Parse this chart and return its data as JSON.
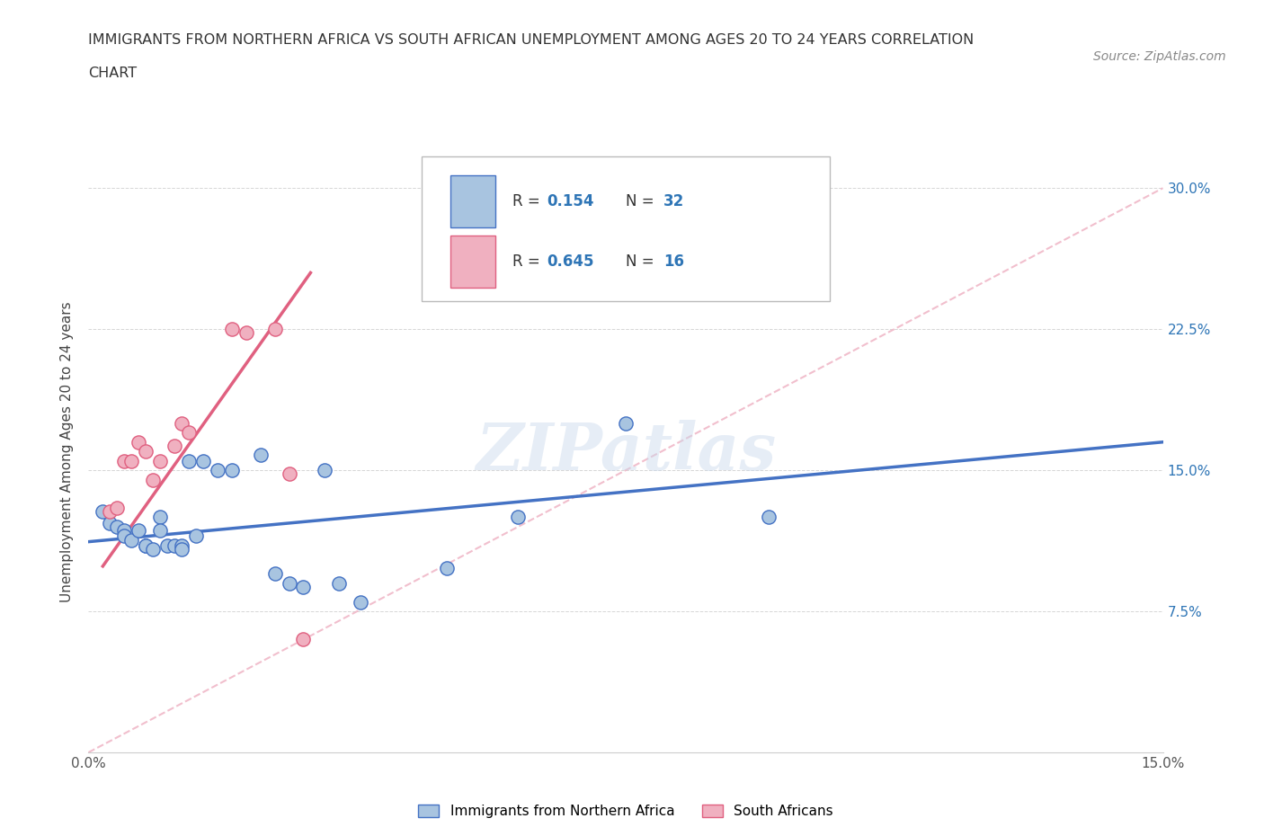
{
  "title_line1": "IMMIGRANTS FROM NORTHERN AFRICA VS SOUTH AFRICAN UNEMPLOYMENT AMONG AGES 20 TO 24 YEARS CORRELATION",
  "title_line2": "CHART",
  "source": "Source: ZipAtlas.com",
  "ylabel": "Unemployment Among Ages 20 to 24 years",
  "xlim": [
    0.0,
    0.15
  ],
  "ylim": [
    0.0,
    0.32
  ],
  "xticks": [
    0.0,
    0.03,
    0.06,
    0.09,
    0.12,
    0.15
  ],
  "yticks": [
    0.0,
    0.075,
    0.15,
    0.225,
    0.3
  ],
  "ytick_labels": [
    "",
    "7.5%",
    "15.0%",
    "22.5%",
    "30.0%"
  ],
  "xtick_labels": [
    "0.0%",
    "",
    "",
    "",
    "",
    "15.0%"
  ],
  "watermark": "ZIPatlas",
  "legend_r1": "0.154",
  "legend_n1": "32",
  "legend_r2": "0.645",
  "legend_n2": "16",
  "legend_label1": "Immigrants from Northern Africa",
  "legend_label2": "South Africans",
  "blue_color": "#a8c4e0",
  "pink_color": "#f0b0c0",
  "blue_line_color": "#4472c4",
  "pink_line_color": "#e06080",
  "diag_line_color": "#f0b8c8",
  "text_color": "#333333",
  "R_color": "#2e75b6",
  "grid_color": "#cccccc",
  "blue_points_x": [
    0.002,
    0.003,
    0.004,
    0.005,
    0.005,
    0.006,
    0.007,
    0.008,
    0.008,
    0.009,
    0.01,
    0.01,
    0.011,
    0.012,
    0.013,
    0.013,
    0.014,
    0.015,
    0.016,
    0.018,
    0.02,
    0.024,
    0.026,
    0.028,
    0.03,
    0.033,
    0.035,
    0.038,
    0.05,
    0.06,
    0.075,
    0.095
  ],
  "blue_points_y": [
    0.128,
    0.122,
    0.12,
    0.118,
    0.115,
    0.113,
    0.118,
    0.11,
    0.11,
    0.108,
    0.125,
    0.118,
    0.11,
    0.11,
    0.11,
    0.108,
    0.155,
    0.115,
    0.155,
    0.15,
    0.15,
    0.158,
    0.095,
    0.09,
    0.088,
    0.15,
    0.09,
    0.08,
    0.098,
    0.125,
    0.175,
    0.125
  ],
  "pink_points_x": [
    0.003,
    0.004,
    0.005,
    0.006,
    0.007,
    0.008,
    0.009,
    0.01,
    0.012,
    0.013,
    0.014,
    0.02,
    0.022,
    0.026,
    0.028,
    0.03
  ],
  "pink_points_y": [
    0.128,
    0.13,
    0.155,
    0.155,
    0.165,
    0.16,
    0.145,
    0.155,
    0.163,
    0.175,
    0.17,
    0.225,
    0.223,
    0.225,
    0.148,
    0.06
  ],
  "blue_trendline_x": [
    0.0,
    0.15
  ],
  "blue_trendline_y": [
    0.112,
    0.165
  ],
  "pink_trendline_x": [
    0.002,
    0.031
  ],
  "pink_trendline_y": [
    0.099,
    0.255
  ],
  "diag_line_x": [
    0.0,
    0.15
  ],
  "diag_line_y": [
    0.0,
    0.3
  ]
}
